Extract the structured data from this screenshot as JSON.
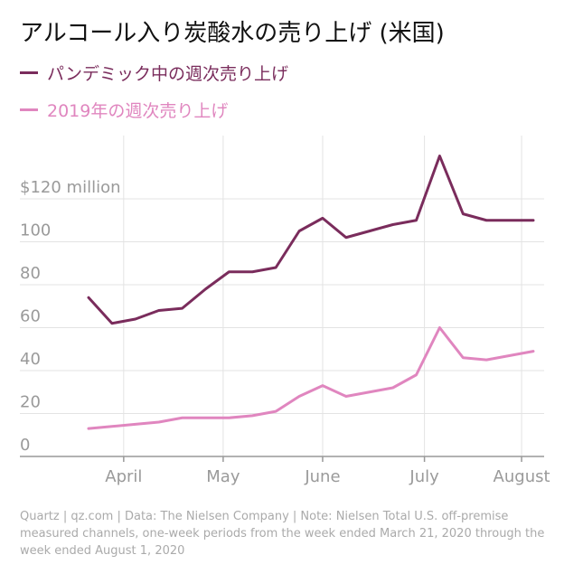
{
  "title": "アルコール入り炭酸水の売り上げ (米国)",
  "colors": {
    "pandemic": "#7a2c5c",
    "y2019": "#e086bf",
    "grid": "#e3e3e3",
    "axis": "#999999",
    "tick_text": "#9a9a9a"
  },
  "footer": "Quartz | qz.com | Data: The Nielsen Company | Note: Nielsen Total U.S. off-premise measured channels, one-week periods from the week ended March 21, 2020 through the week ended August 1, 2020",
  "chart_data": {
    "type": "line",
    "title": "アルコール入り炭酸水の売り上げ (米国)",
    "xlabel": "",
    "ylabel": "",
    "ylim": [
      0,
      130
    ],
    "y_ticks": [
      0,
      20,
      40,
      60,
      80,
      100,
      120
    ],
    "y_tick_labels": [
      "0",
      "20",
      "40",
      "60",
      "80",
      "100",
      "$120 million"
    ],
    "x_tick_labels": [
      "April",
      "May",
      "June",
      "July",
      "August"
    ],
    "x_tick_weeks": [
      1.5,
      5.75,
      10,
      14.35,
      18.5
    ],
    "grid": true,
    "legend_placement": "top-left",
    "series": [
      {
        "name": "パンデミック中の週次売り上げ",
        "color_key": "pandemic",
        "weeks": [
          0,
          1,
          2,
          3,
          4,
          5,
          6,
          7,
          8,
          9,
          10,
          11,
          12,
          13,
          14,
          15,
          16,
          17,
          18,
          19
        ],
        "values": [
          74,
          62,
          64,
          68,
          69,
          78,
          86,
          86,
          88,
          105,
          111,
          102,
          105,
          108,
          110,
          140,
          113,
          110,
          110,
          110
        ]
      },
      {
        "name": "2019年の週次売り上げ",
        "color_key": "y2019",
        "weeks": [
          0,
          1,
          2,
          3,
          4,
          5,
          6,
          7,
          8,
          9,
          10,
          11,
          12,
          13,
          14,
          15,
          16,
          17,
          18,
          19
        ],
        "values": [
          13,
          14,
          15,
          16,
          18,
          18,
          18,
          19,
          21,
          28,
          33,
          28,
          30,
          32,
          38,
          60,
          46,
          45,
          47,
          49
        ]
      }
    ]
  }
}
